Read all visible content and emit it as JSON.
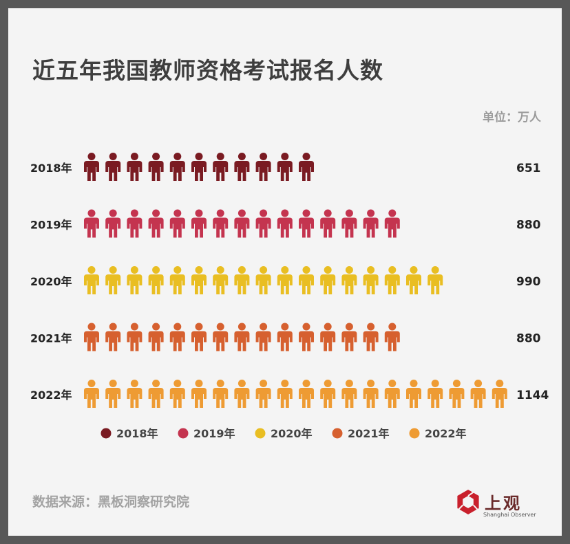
{
  "title": "近五年我国教师资格考试报名人数",
  "unit": "单位：万人",
  "source": "数据来源：黑板洞察研究院",
  "logo": {
    "text": "上观",
    "subtext": "Shanghai Observer",
    "icon": "shutter-logo-icon"
  },
  "colors": {
    "2018年": "#7a1b22",
    "2019年": "#c4344f",
    "2020年": "#e9be22",
    "2021年": "#d6602f",
    "2022年": "#ee9b33"
  },
  "chart_data": {
    "type": "bar",
    "title": "近五年我国教师资格考试报名人数",
    "categories": [
      "2018年",
      "2019年",
      "2020年",
      "2021年",
      "2022年"
    ],
    "values": [
      651,
      880,
      990,
      880,
      1144
    ],
    "value_labels": [
      "651",
      "880",
      "990",
      "880",
      "1144"
    ],
    "unit": "万人",
    "icon_counts": [
      11,
      15,
      17,
      15,
      20
    ],
    "legend": [
      "2018年",
      "2019年",
      "2020年",
      "2021年",
      "2022年"
    ],
    "legend_position": "bottom",
    "grid": false
  }
}
